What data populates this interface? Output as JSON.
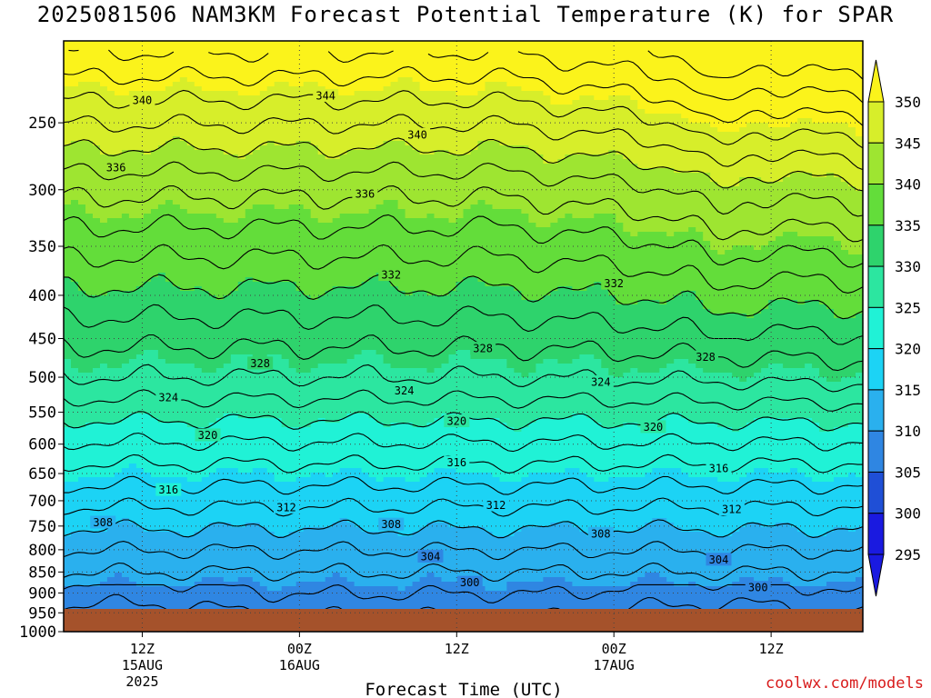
{
  "chart_data": {
    "type": "contour",
    "title": "2025081506 NAM3KM Forecast Potential Temperature (K) for SPAR",
    "xlabel": "Forecast Time (UTC)",
    "ylabel": "",
    "y_axis": {
      "scale": "log-pressure",
      "ylim": [
        1000,
        200
      ],
      "ticks": [
        250,
        300,
        350,
        400,
        450,
        500,
        550,
        600,
        650,
        700,
        750,
        800,
        850,
        900,
        950,
        1000
      ]
    },
    "x_axis": {
      "xlim": [
        "2025-08-15T06Z",
        "2025-08-17T19Z"
      ],
      "ticks": [
        {
          "time": "2025-08-15T12Z",
          "lines": [
            "12Z",
            "15AUG",
            "2025"
          ]
        },
        {
          "time": "2025-08-16T00Z",
          "lines": [
            "00Z",
            "16AUG"
          ]
        },
        {
          "time": "2025-08-16T12Z",
          "lines": [
            "12Z"
          ]
        },
        {
          "time": "2025-08-17T00Z",
          "lines": [
            "00Z",
            "17AUG"
          ]
        },
        {
          "time": "2025-08-17T12Z",
          "lines": [
            "12Z"
          ]
        }
      ]
    },
    "grid": true,
    "colorbar": {
      "levels": [
        295,
        300,
        305,
        310,
        315,
        320,
        325,
        330,
        335,
        340,
        345,
        350
      ],
      "colors": [
        "#1a1ae0",
        "#1f4fd6",
        "#2f86e2",
        "#2ab0ee",
        "#1cd3f5",
        "#20f2d6",
        "#2ce6a0",
        "#2ed36c",
        "#63dd3a",
        "#9ee531",
        "#d7ee2a",
        "#fbf31b"
      ],
      "extend": "both"
    },
    "contour_labels": [
      {
        "value": 344,
        "time": "2025-08-16T02Z",
        "pressure": 232
      },
      {
        "value": 340,
        "time": "2025-08-15T12Z",
        "pressure": 235
      },
      {
        "value": 340,
        "time": "2025-08-16T09Z",
        "pressure": 258
      },
      {
        "value": 336,
        "time": "2025-08-15T10Z",
        "pressure": 282
      },
      {
        "value": 336,
        "time": "2025-08-16T05Z",
        "pressure": 303
      },
      {
        "value": 332,
        "time": "2025-08-16T07Z",
        "pressure": 378
      },
      {
        "value": 332,
        "time": "2025-08-17T00Z",
        "pressure": 387
      },
      {
        "value": 328,
        "time": "2025-08-15T21Z",
        "pressure": 481
      },
      {
        "value": 328,
        "time": "2025-08-16T14Z",
        "pressure": 462
      },
      {
        "value": 328,
        "time": "2025-08-17T07Z",
        "pressure": 473
      },
      {
        "value": 324,
        "time": "2025-08-15T14Z",
        "pressure": 528
      },
      {
        "value": 324,
        "time": "2025-08-16T08Z",
        "pressure": 518
      },
      {
        "value": 324,
        "time": "2025-08-16T23Z",
        "pressure": 506
      },
      {
        "value": 320,
        "time": "2025-08-15T17Z",
        "pressure": 585
      },
      {
        "value": 320,
        "time": "2025-08-16T12Z",
        "pressure": 563
      },
      {
        "value": 320,
        "time": "2025-08-17T03Z",
        "pressure": 572
      },
      {
        "value": 316,
        "time": "2025-08-15T14Z",
        "pressure": 679
      },
      {
        "value": 316,
        "time": "2025-08-16T12Z",
        "pressure": 630
      },
      {
        "value": 316,
        "time": "2025-08-17T08Z",
        "pressure": 640
      },
      {
        "value": 312,
        "time": "2025-08-15T23Z",
        "pressure": 712
      },
      {
        "value": 312,
        "time": "2025-08-16T15Z",
        "pressure": 708
      },
      {
        "value": 312,
        "time": "2025-08-17T09Z",
        "pressure": 716
      },
      {
        "value": 308,
        "time": "2025-08-15T09Z",
        "pressure": 742
      },
      {
        "value": 308,
        "time": "2025-08-16T07Z",
        "pressure": 746
      },
      {
        "value": 308,
        "time": "2025-08-16T23Z",
        "pressure": 765
      },
      {
        "value": 304,
        "time": "2025-08-16T10Z",
        "pressure": 814
      },
      {
        "value": 304,
        "time": "2025-08-17T08Z",
        "pressure": 821
      },
      {
        "value": 300,
        "time": "2025-08-16T13Z",
        "pressure": 874
      },
      {
        "value": 300,
        "time": "2025-08-17T11Z",
        "pressure": 886
      }
    ]
  },
  "credit": "coolwx.com/models"
}
